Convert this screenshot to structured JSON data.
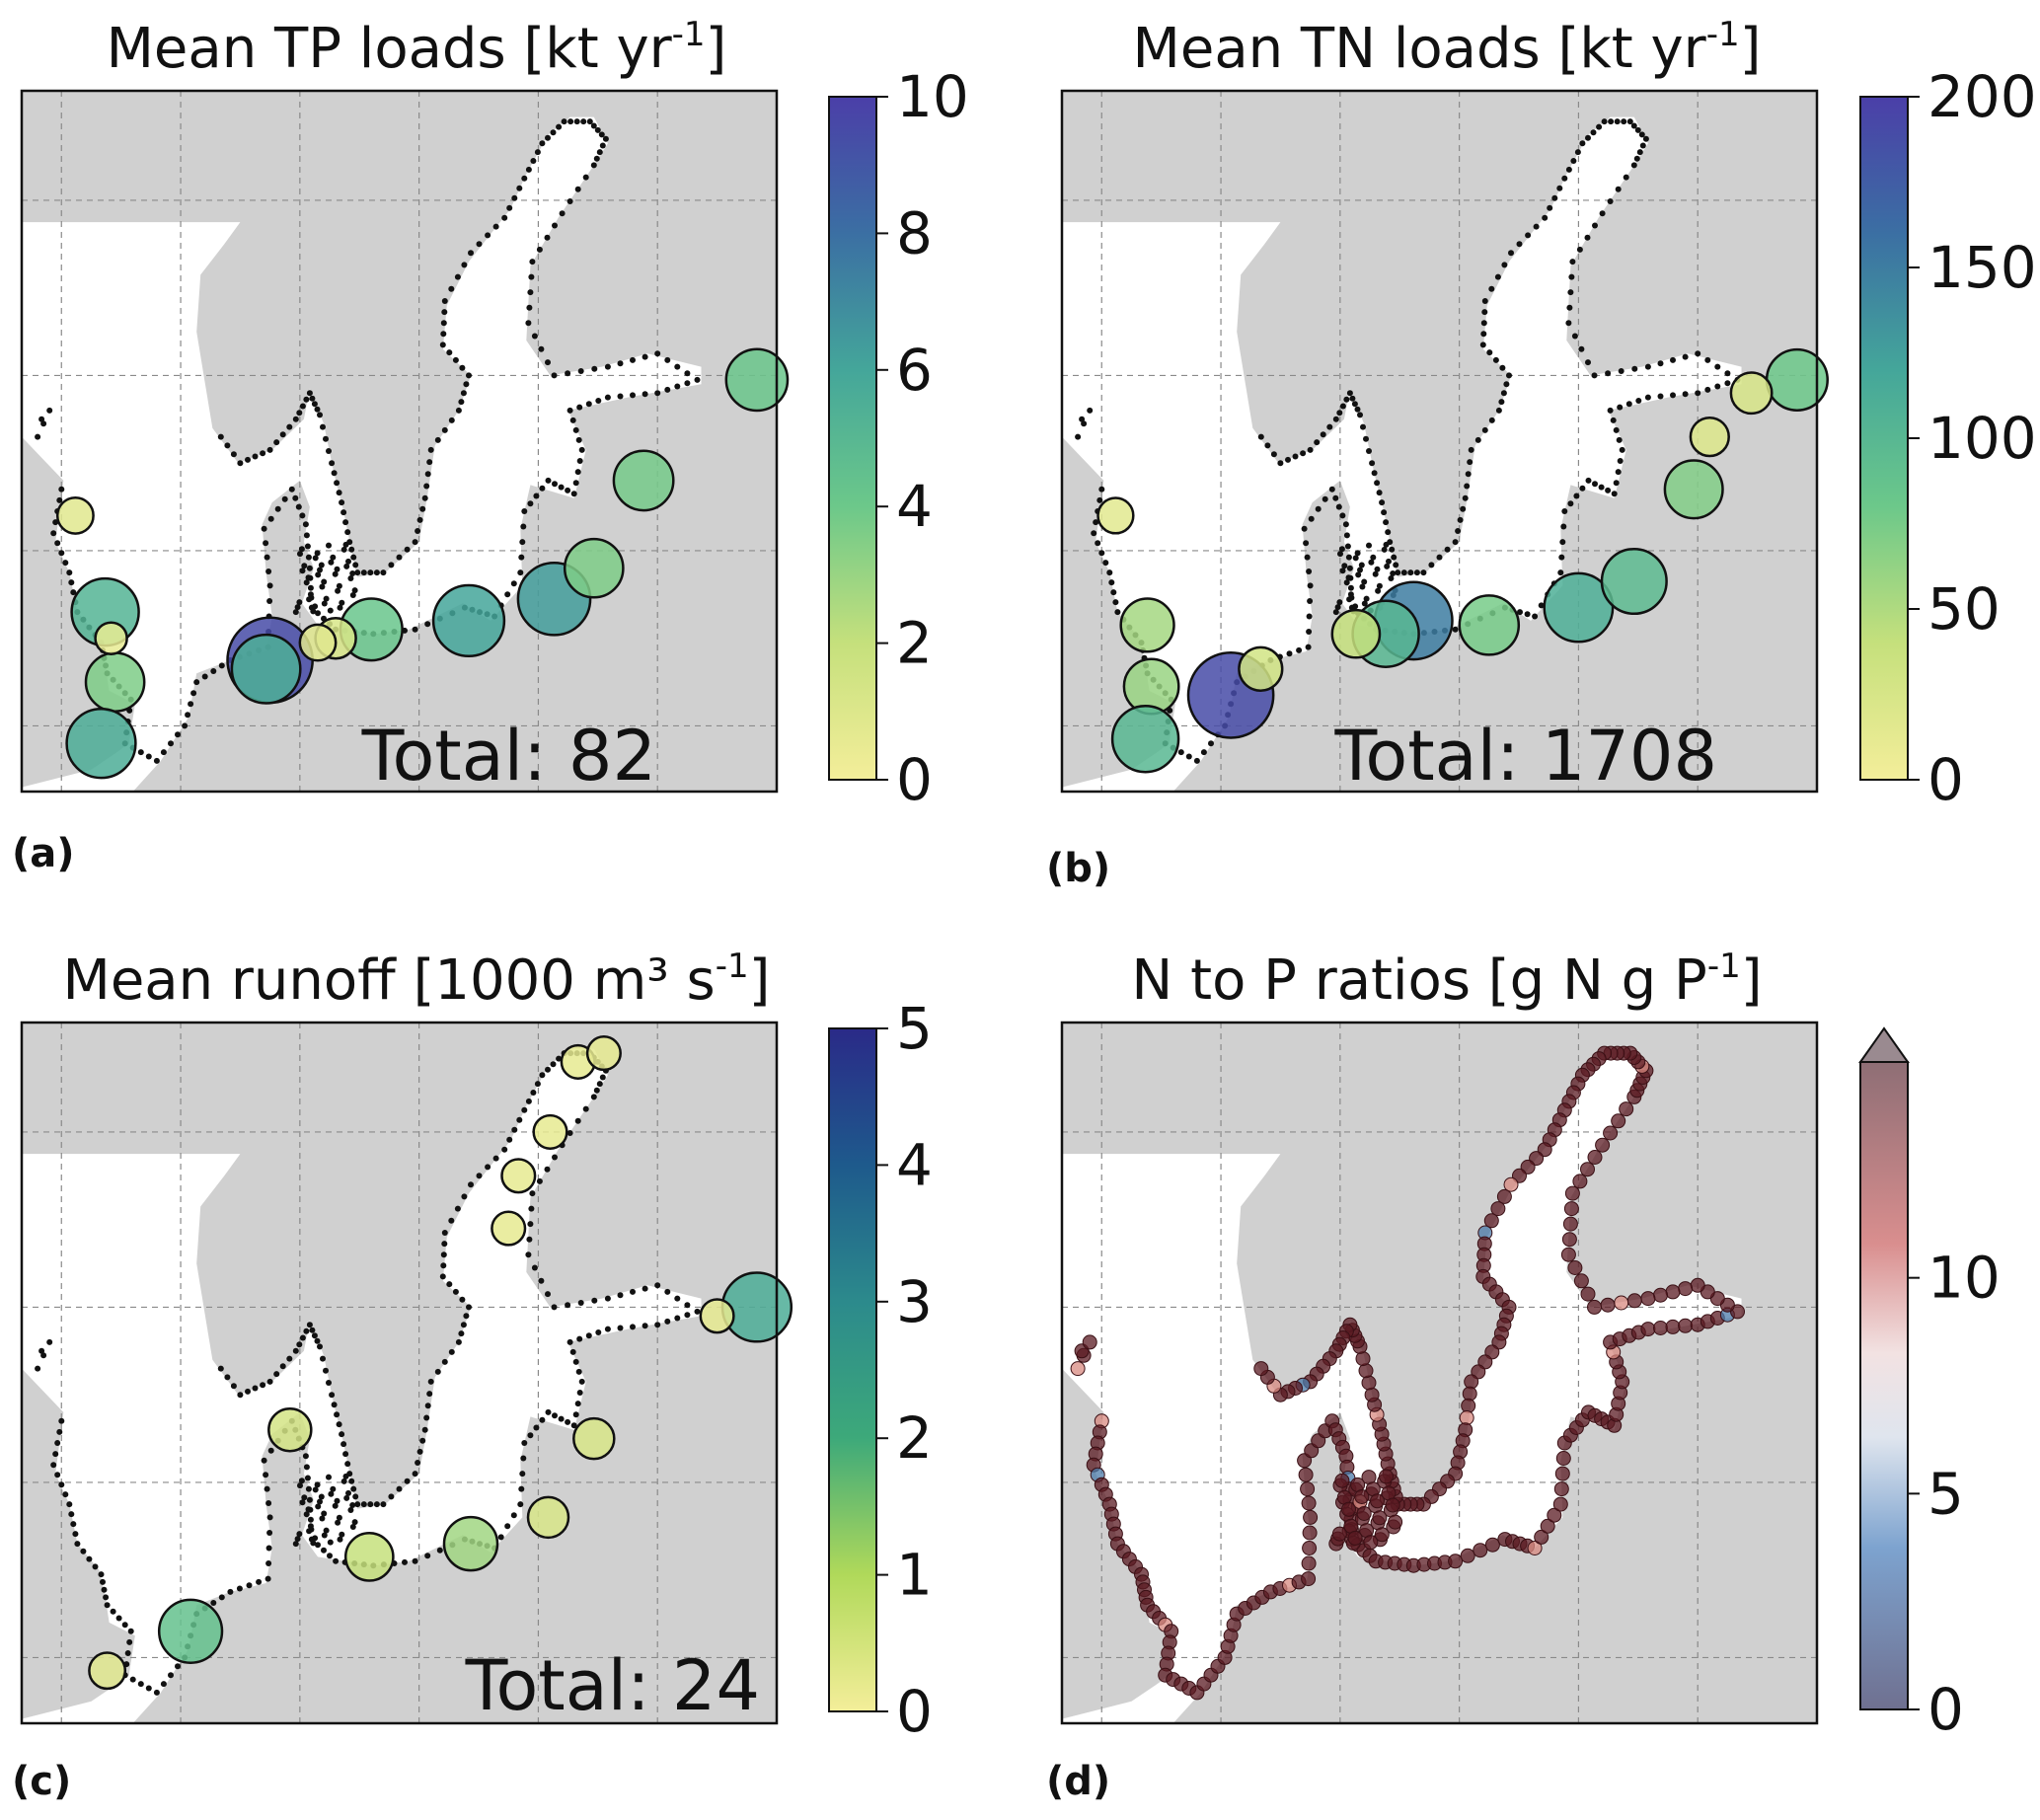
{
  "panels": [
    {
      "id": "a",
      "title": "Mean TP loads [kt yr",
      "title_sup": "-1",
      "title_end": "]",
      "label": "(a)",
      "total": "Total: 82",
      "colorbar": {
        "cmap": "viridis",
        "ticks": [
          "0",
          "2",
          "4",
          "6",
          "8",
          "10"
        ],
        "min": 0,
        "max": 10,
        "extend_max": false
      },
      "markers": [
        {
          "lon": 8.5,
          "lat": 53.5,
          "value": 9.5
        },
        {
          "lon": 8.3,
          "lat": 53.3,
          "value": 5.5
        },
        {
          "lon": 0.2,
          "lat": 54.6,
          "value": 5.2
        },
        {
          "lon": 0.7,
          "lat": 53.0,
          "value": 3.6
        },
        {
          "lon": 0.0,
          "lat": 51.6,
          "value": 5.6
        },
        {
          "lon": 13.6,
          "lat": 54.2,
          "value": 4.2
        },
        {
          "lon": 18.5,
          "lat": 54.4,
          "value": 6.0
        },
        {
          "lon": 22.8,
          "lat": 54.9,
          "value": 6.3
        },
        {
          "lon": 24.8,
          "lat": 55.6,
          "value": 3.6
        },
        {
          "lon": 27.3,
          "lat": 57.6,
          "value": 3.8
        },
        {
          "lon": 33.0,
          "lat": 59.9,
          "value": 4.1
        },
        {
          "lon": 11.8,
          "lat": 54.0,
          "value": 1.2
        },
        {
          "lon": 10.9,
          "lat": 53.9,
          "value": 0.8
        },
        {
          "lon": -1.3,
          "lat": 56.8,
          "value": 0.8
        },
        {
          "lon": 0.5,
          "lat": 54.0,
          "value": 0.5
        }
      ]
    },
    {
      "id": "b",
      "title": "Mean TN loads [kt yr",
      "title_sup": "-1",
      "title_end": "]",
      "label": "(b)",
      "total": "Total: 1708",
      "colorbar": {
        "cmap": "viridis",
        "ticks": [
          "0",
          "50",
          "100",
          "150",
          "200"
        ],
        "min": 0,
        "max": 200,
        "extend_max": false
      },
      "markers": [
        {
          "lon": 4.5,
          "lat": 52.7,
          "value": 190
        },
        {
          "lon": 13.7,
          "lat": 54.4,
          "value": 150
        },
        {
          "lon": 12.3,
          "lat": 54.1,
          "value": 100
        },
        {
          "lon": 17.5,
          "lat": 54.3,
          "value": 75
        },
        {
          "lon": 22.0,
          "lat": 54.7,
          "value": 110
        },
        {
          "lon": 24.8,
          "lat": 55.3,
          "value": 95
        },
        {
          "lon": 27.8,
          "lat": 57.4,
          "value": 70
        },
        {
          "lon": 33.0,
          "lat": 59.9,
          "value": 80
        },
        {
          "lon": 0.3,
          "lat": 54.3,
          "value": 55
        },
        {
          "lon": 0.5,
          "lat": 52.9,
          "value": 60
        },
        {
          "lon": 0.2,
          "lat": 51.7,
          "value": 100
        },
        {
          "lon": 10.8,
          "lat": 54.1,
          "value": 40
        },
        {
          "lon": 6.0,
          "lat": 53.3,
          "value": 30
        },
        {
          "lon": 30.7,
          "lat": 59.6,
          "value": 25
        },
        {
          "lon": 28.6,
          "lat": 58.6,
          "value": 20
        },
        {
          "lon": -1.3,
          "lat": 56.8,
          "value": 15
        }
      ]
    },
    {
      "id": "c",
      "title": "Mean runoff [1000 m³ s",
      "title_sup": "-1",
      "title_end": "]",
      "label": "(c)",
      "total": "Total: 24",
      "colorbar": {
        "cmap": "viridis",
        "ticks": [
          "0",
          "1",
          "2",
          "3",
          "4",
          "5"
        ],
        "min": 0,
        "max": 5,
        "extend_max": false
      },
      "markers": [
        {
          "lon": 4.5,
          "lat": 52.6,
          "value": 2.2
        },
        {
          "lon": 33.0,
          "lat": 60.0,
          "value": 2.8
        },
        {
          "lon": 18.6,
          "lat": 54.6,
          "value": 1.4
        },
        {
          "lon": 13.5,
          "lat": 54.3,
          "value": 1.0
        },
        {
          "lon": 22.5,
          "lat": 55.2,
          "value": 0.6
        },
        {
          "lon": 24.8,
          "lat": 57.0,
          "value": 0.6
        },
        {
          "lon": 9.5,
          "lat": 57.2,
          "value": 0.7
        },
        {
          "lon": 22.6,
          "lat": 64.0,
          "value": 0.3
        },
        {
          "lon": 21.0,
          "lat": 63.0,
          "value": 0.3
        },
        {
          "lon": 20.5,
          "lat": 61.8,
          "value": 0.3
        },
        {
          "lon": 31.0,
          "lat": 59.8,
          "value": 0.3
        },
        {
          "lon": 24.0,
          "lat": 65.6,
          "value": 0.3
        },
        {
          "lon": 25.3,
          "lat": 65.8,
          "value": 0.3
        },
        {
          "lon": 0.3,
          "lat": 51.7,
          "value": 0.4
        }
      ]
    },
    {
      "id": "d",
      "title": "N to P ratios [g N  g P",
      "title_sup": "-1",
      "title_end": "]",
      "label": "(d)",
      "total": "",
      "colorbar": {
        "cmap": "vlag",
        "ticks": [
          "0",
          "5",
          "10"
        ],
        "min": 0,
        "max": 15,
        "extend_max": true
      },
      "markers": []
    }
  ],
  "colors": {
    "land": "#d0d0d0",
    "sea": "#ffffff",
    "grid": "#8a8a8a",
    "station_dots": "#111111",
    "ratio_dots": "#5a1a22"
  }
}
